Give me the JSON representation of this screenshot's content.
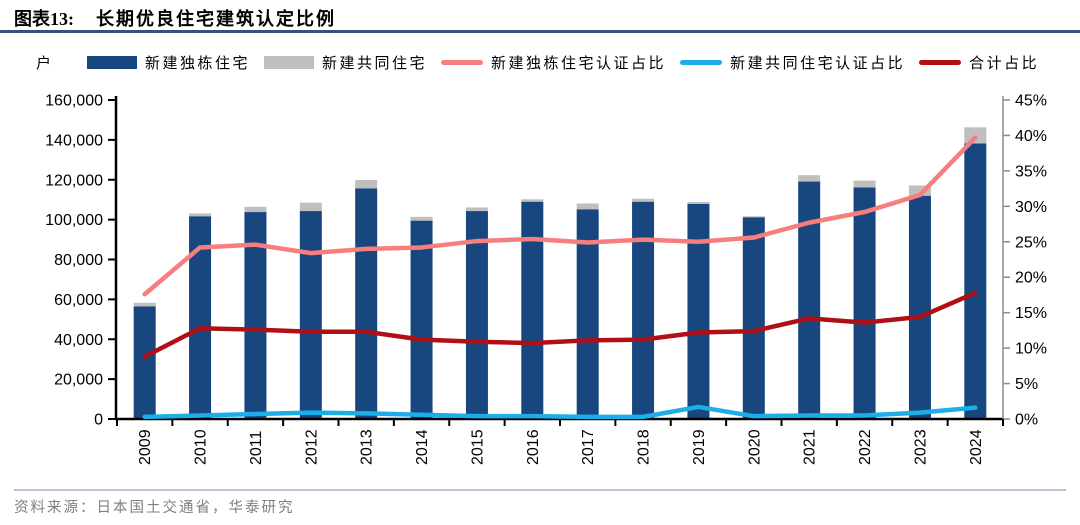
{
  "header": {
    "tag": "图表13:",
    "title": "长期优良住宅建筑认定比例"
  },
  "unit_label": "户",
  "legend": [
    {
      "label": "新建独栋住宅",
      "type": "bar",
      "color": "#17477E"
    },
    {
      "label": "新建共同住宅",
      "type": "bar",
      "color": "#BFBFBF"
    },
    {
      "label": "新建独栋住宅认证占比",
      "type": "line",
      "color": "#F87E7E"
    },
    {
      "label": "新建共同住宅认证占比",
      "type": "line",
      "color": "#1BAEE9"
    },
    {
      "label": "合计占比",
      "type": "line",
      "color": "#B00F15"
    }
  ],
  "chart_data": {
    "type": "bar",
    "subtype": "stacked-bars-with-lines",
    "title": "长期优良住宅建筑认定比例",
    "categories": [
      "2009",
      "2010",
      "2011",
      "2012",
      "2013",
      "2014",
      "2015",
      "2016",
      "2017",
      "2018",
      "2019",
      "2020",
      "2021",
      "2022",
      "2023",
      "2024"
    ],
    "bar_series": [
      {
        "name": "新建独栋住宅",
        "color": "#17477E",
        "values": [
          56500,
          101700,
          103800,
          104300,
          115700,
          99500,
          104300,
          109000,
          105200,
          109000,
          107900,
          101200,
          119100,
          116200,
          112000,
          138200
        ]
      },
      {
        "name": "新建共同住宅",
        "color": "#BFBFBF",
        "values": [
          1800,
          1400,
          2600,
          4200,
          4200,
          1900,
          1800,
          1200,
          2900,
          1500,
          1000,
          500,
          3200,
          3400,
          5100,
          8100
        ]
      }
    ],
    "line_series": [
      {
        "name": "新建独栋住宅认证占比",
        "color": "#F87E7E",
        "axis": "right",
        "values": [
          17.6,
          24.2,
          24.6,
          23.4,
          24.0,
          24.2,
          25.1,
          25.4,
          24.9,
          25.3,
          25.0,
          25.6,
          27.7,
          29.2,
          31.6,
          39.7
        ]
      },
      {
        "name": "新建共同住宅认证占比",
        "color": "#1BAEE9",
        "axis": "right",
        "values": [
          0.3,
          0.5,
          0.7,
          0.9,
          0.8,
          0.6,
          0.4,
          0.4,
          0.3,
          0.3,
          1.7,
          0.4,
          0.5,
          0.5,
          0.9,
          1.6
        ]
      },
      {
        "name": "合计占比",
        "color": "#B00F15",
        "axis": "right",
        "values": [
          8.8,
          12.8,
          12.6,
          12.3,
          12.3,
          11.2,
          10.9,
          10.7,
          11.1,
          11.2,
          12.2,
          12.4,
          14.2,
          13.6,
          14.4,
          17.8
        ]
      }
    ],
    "left_axis": {
      "min": 0,
      "max": 160000,
      "step": 20000,
      "unit": "户"
    },
    "right_axis": {
      "min": 0,
      "max": 45,
      "step": 5,
      "unit": "%"
    },
    "grid": false,
    "legend_position": "top"
  },
  "source": {
    "text": "资料来源：日本国土交通省，华泰研究"
  }
}
